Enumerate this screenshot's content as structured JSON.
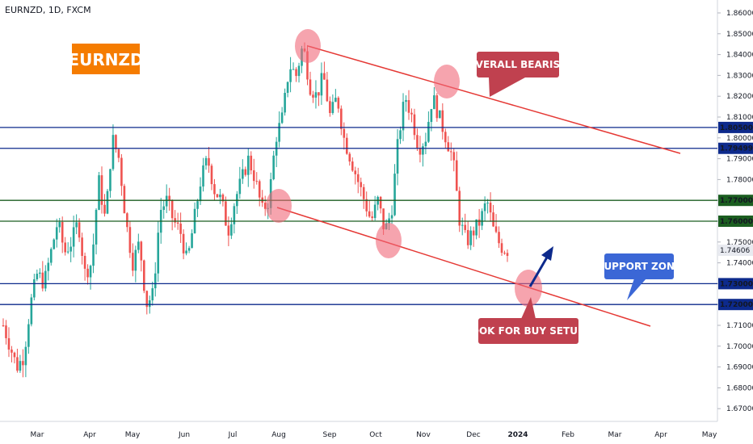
{
  "header": {
    "symbol": "EURNZD, 1D, FXCM"
  },
  "colors": {
    "up": "#26a69a",
    "down": "#ef5350",
    "blue_level": "#0d2a8c",
    "green_level": "#1b5e20",
    "trend": "#e53935",
    "badge_orange": "#f57c00",
    "callout_red": "#c0414f",
    "callout_blue": "#3b67d6",
    "current_price_bg": "#e8eaf0"
  },
  "chart_data": {
    "type": "candlestick",
    "title": "EURNZD",
    "ylim": [
      1.665,
      1.865
    ],
    "y_ticks": [
      1.67,
      1.68,
      1.69,
      1.7,
      1.71,
      1.72,
      1.73,
      1.74,
      1.75,
      1.76,
      1.77,
      1.78,
      1.79,
      1.8,
      1.81,
      1.82,
      1.83,
      1.84,
      1.85,
      1.86
    ],
    "y_tick_labels": [
      "1.67000",
      "1.68000",
      "1.69000",
      "1.70000",
      "1.71000",
      "1.72000",
      "1.73000",
      "1.74000",
      "1.75000",
      "1.76000",
      "1.77000",
      "1.78000",
      "1.79000",
      "1.80000",
      "1.81000",
      "1.82000",
      "1.83000",
      "1.84000",
      "1.85000",
      "1.86000"
    ],
    "x_labels": [
      "Mar",
      "Apr",
      "May",
      "Jun",
      "Jul",
      "Aug",
      "Sep",
      "Oct",
      "Nov",
      "Dec",
      "2024",
      "Feb",
      "Mar",
      "Apr",
      "May"
    ],
    "horizontal_levels": [
      {
        "value": 1.805,
        "label": "1.80500",
        "kind": "blue"
      },
      {
        "value": 1.79499,
        "label": "1.79499",
        "kind": "blue"
      },
      {
        "value": 1.77,
        "label": "1.77000",
        "kind": "green"
      },
      {
        "value": 1.76,
        "label": "1.76000",
        "kind": "green"
      },
      {
        "value": 1.73,
        "label": "1.73000",
        "kind": "blue"
      },
      {
        "value": 1.72,
        "label": "1.72000",
        "kind": "blue"
      }
    ],
    "current_price": {
      "value": 1.74606,
      "label": "1.74606"
    },
    "price_path": [
      1.71,
      1.7,
      1.69,
      1.695,
      1.72,
      1.735,
      1.73,
      1.745,
      1.76,
      1.745,
      1.75,
      1.76,
      1.735,
      1.74,
      1.78,
      1.76,
      1.8,
      1.79,
      1.76,
      1.74,
      1.75,
      1.72,
      1.725,
      1.765,
      1.77,
      1.76,
      1.755,
      1.74,
      1.76,
      1.78,
      1.79,
      1.775,
      1.77,
      1.755,
      1.77,
      1.78,
      1.79,
      1.78,
      1.765,
      1.77,
      1.8,
      1.81,
      1.835,
      1.83,
      1.845,
      1.825,
      1.82,
      1.83,
      1.81,
      1.82,
      1.8,
      1.79,
      1.78,
      1.77,
      1.76,
      1.77,
      1.755,
      1.765,
      1.8,
      1.82,
      1.81,
      1.795,
      1.8,
      1.82,
      1.81,
      1.8,
      1.79,
      1.76,
      1.75,
      1.755,
      1.76,
      1.77,
      1.755,
      1.748,
      1.746
    ],
    "annotations": {
      "badge": "EURNZD",
      "overall": "OVERALL BEARISH",
      "support": "SUPPORT ZONE",
      "buy": "LOOK FOR BUY SETUPS"
    }
  }
}
